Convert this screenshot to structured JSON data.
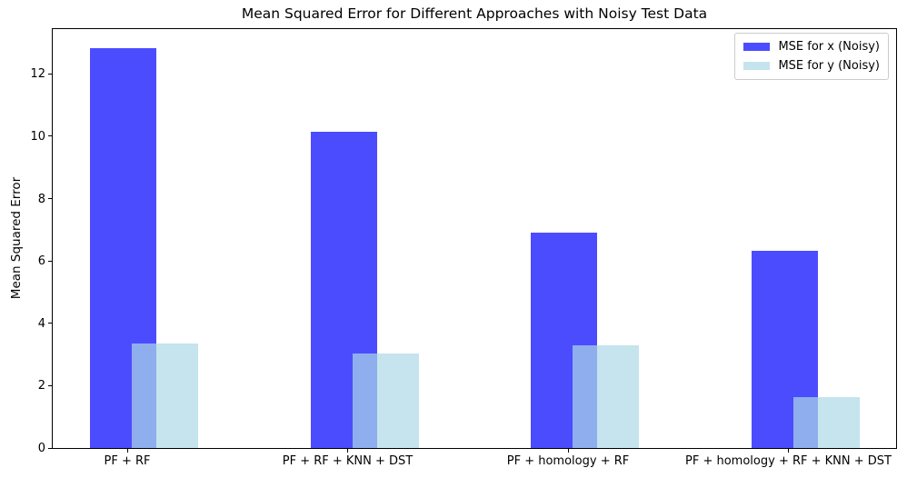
{
  "chart_data": {
    "type": "bar",
    "title": "Mean Squared Error for Different Approaches with Noisy Test Data",
    "xlabel": "",
    "ylabel": "Mean Squared Error",
    "categories": [
      "PF + RF",
      "PF + RF + KNN + DST",
      "PF + homology + RF",
      "PF + homology + RF + KNN + DST"
    ],
    "series": [
      {
        "name": "MSE for x (Noisy)",
        "color": "rgba(0,0,255,0.7)",
        "values": [
          12.84,
          10.15,
          6.9,
          6.33
        ]
      },
      {
        "name": "MSE for y (Noisy)",
        "color": "rgba(173,216,230,0.7)",
        "values": [
          3.36,
          3.02,
          3.3,
          1.62
        ]
      }
    ],
    "ylim": [
      0,
      13.44
    ],
    "yticks": [
      0,
      2,
      4,
      6,
      8,
      10,
      12
    ],
    "legend_position": "upper right",
    "grid": false,
    "bar_style": "second series overlaps first, drawn on top with transparency"
  },
  "colors": {
    "spine": "#000000",
    "text": "#000000",
    "legend_border": "#cccccc",
    "background": "#ffffff"
  }
}
